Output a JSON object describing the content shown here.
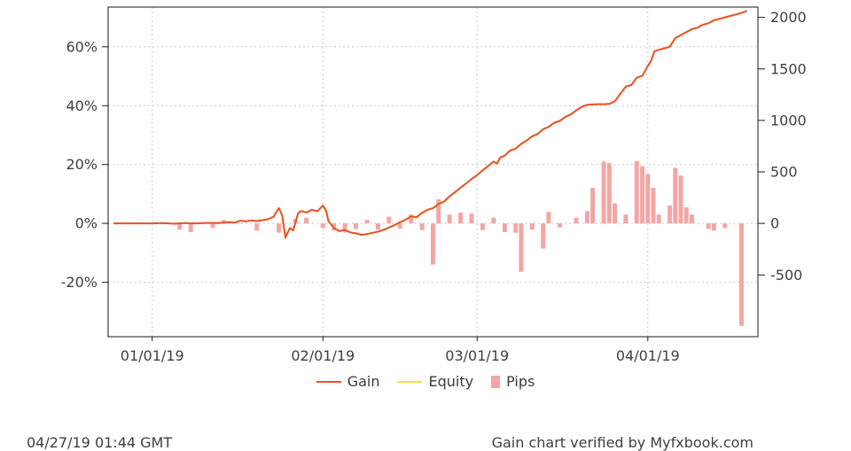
{
  "chart_data": {
    "type": "line",
    "title": "",
    "x_axis": {
      "tick_labels": [
        "01/01/19",
        "02/01/19",
        "03/01/19",
        "04/01/19"
      ],
      "tick_days": [
        0,
        31,
        59,
        90
      ],
      "domain_days": [
        -8,
        110
      ]
    },
    "left_axis": {
      "unit": "%",
      "tick_labels": [
        "60%",
        "40%",
        "20%",
        "0%",
        "-20%"
      ],
      "tick_values": [
        60,
        40,
        20,
        0,
        -20
      ],
      "range": [
        -38.5,
        73.5
      ]
    },
    "right_axis": {
      "unit": "pips",
      "tick_labels": [
        "2000",
        "1500",
        "1000",
        "500",
        "0",
        "-500"
      ],
      "tick_values": [
        2000,
        1500,
        1000,
        500,
        0,
        -500
      ],
      "range": [
        -1100,
        2100
      ]
    },
    "grid": true,
    "legend_position": "bottom",
    "series": [
      {
        "name": "Gain",
        "type": "line",
        "color": "#e8522b",
        "axis": "left",
        "points": [
          [
            -7,
            0
          ],
          [
            0,
            0
          ],
          [
            2,
            0.1
          ],
          [
            4,
            -0.1
          ],
          [
            6,
            0.1
          ],
          [
            8,
            0
          ],
          [
            10,
            0.2
          ],
          [
            12,
            0.1
          ],
          [
            14,
            0.4
          ],
          [
            15,
            0.3
          ],
          [
            16,
            0.9
          ],
          [
            17,
            0.7
          ],
          [
            18,
            1
          ],
          [
            19,
            0.8
          ],
          [
            20,
            1.1
          ],
          [
            21,
            1.4
          ],
          [
            22,
            2.2
          ],
          [
            23,
            5.2
          ],
          [
            23.6,
            2.8
          ],
          [
            24.2,
            -4.8
          ],
          [
            25,
            -1.6
          ],
          [
            25.6,
            -2.4
          ],
          [
            26.5,
            3.4
          ],
          [
            27,
            4.2
          ],
          [
            28,
            3.7
          ],
          [
            29,
            4.6
          ],
          [
            30,
            4.1
          ],
          [
            31,
            6.1
          ],
          [
            31.6,
            4.2
          ],
          [
            32,
            0.8
          ],
          [
            33,
            -1.6
          ],
          [
            34,
            -2.6
          ],
          [
            35,
            -2.2
          ],
          [
            36,
            -3.1
          ],
          [
            37,
            -3.4
          ],
          [
            38,
            -3.9
          ],
          [
            39,
            -3.6
          ],
          [
            40,
            -3.2
          ],
          [
            41,
            -2.8
          ],
          [
            42,
            -2.2
          ],
          [
            43,
            -1.4
          ],
          [
            44,
            -0.6
          ],
          [
            45,
            0.4
          ],
          [
            46,
            1.2
          ],
          [
            47,
            2.4
          ],
          [
            48,
            2.1
          ],
          [
            49,
            3.6
          ],
          [
            50,
            4.6
          ],
          [
            51,
            5.2
          ],
          [
            52,
            6.6
          ],
          [
            53,
            7.4
          ],
          [
            54,
            9.2
          ],
          [
            55,
            10.6
          ],
          [
            56,
            12.1
          ],
          [
            57,
            13.6
          ],
          [
            58,
            15.1
          ],
          [
            59,
            16.4
          ],
          [
            60,
            18
          ],
          [
            61,
            19.5
          ],
          [
            62,
            21
          ],
          [
            62.6,
            20.3
          ],
          [
            63.2,
            22.4
          ],
          [
            64,
            23
          ],
          [
            65,
            24.8
          ],
          [
            66,
            25.4
          ],
          [
            67,
            27
          ],
          [
            68,
            28.2
          ],
          [
            69,
            29.6
          ],
          [
            70,
            30.4
          ],
          [
            71,
            32
          ],
          [
            72,
            32.8
          ],
          [
            73,
            34.2
          ],
          [
            74,
            34.8
          ],
          [
            75,
            36.2
          ],
          [
            76,
            37
          ],
          [
            77,
            38.4
          ],
          [
            78,
            39.6
          ],
          [
            79,
            40.3
          ],
          [
            80,
            40.4
          ],
          [
            81,
            40.5
          ],
          [
            82,
            40.5
          ],
          [
            83,
            40.6
          ],
          [
            84,
            41.5
          ],
          [
            85,
            44
          ],
          [
            86,
            46.5
          ],
          [
            87,
            47
          ],
          [
            88,
            49.5
          ],
          [
            89,
            50.1
          ],
          [
            90,
            53.5
          ],
          [
            90.6,
            55.2
          ],
          [
            91.2,
            58.5
          ],
          [
            92,
            59
          ],
          [
            93,
            59.5
          ],
          [
            94,
            60
          ],
          [
            95,
            63
          ],
          [
            96,
            64
          ],
          [
            97,
            65
          ],
          [
            98,
            66
          ],
          [
            99,
            66.5
          ],
          [
            100,
            67.5
          ],
          [
            101,
            68
          ],
          [
            102,
            69
          ],
          [
            103,
            69.5
          ],
          [
            104,
            70
          ],
          [
            105,
            70.5
          ],
          [
            106,
            71
          ],
          [
            107,
            71.5
          ],
          [
            108,
            72.2
          ]
        ]
      },
      {
        "name": "Equity",
        "type": "line",
        "color": "#f7e13c",
        "axis": "left",
        "points_same_as": "Gain"
      },
      {
        "name": "Pips",
        "type": "bar",
        "color": "#f3a6a4",
        "axis": "right",
        "points": [
          [
            5,
            -60
          ],
          [
            7,
            -85
          ],
          [
            11,
            -45
          ],
          [
            13,
            35
          ],
          [
            19,
            -70
          ],
          [
            23,
            -90
          ],
          [
            26,
            45
          ],
          [
            28,
            55
          ],
          [
            31,
            -45
          ],
          [
            33,
            -70
          ],
          [
            35,
            -90
          ],
          [
            37,
            -55
          ],
          [
            39,
            35
          ],
          [
            41,
            -60
          ],
          [
            43,
            65
          ],
          [
            45,
            -50
          ],
          [
            47,
            85
          ],
          [
            49,
            -65
          ],
          [
            51,
            -400
          ],
          [
            52,
            235
          ],
          [
            54,
            85
          ],
          [
            56,
            105
          ],
          [
            58,
            95
          ],
          [
            60,
            -65
          ],
          [
            62,
            55
          ],
          [
            64,
            -85
          ],
          [
            66,
            -90
          ],
          [
            67,
            -470
          ],
          [
            69,
            -60
          ],
          [
            71,
            -245
          ],
          [
            72,
            110
          ],
          [
            74,
            -40
          ],
          [
            77,
            55
          ],
          [
            79,
            120
          ],
          [
            80,
            345
          ],
          [
            82,
            600
          ],
          [
            83,
            585
          ],
          [
            84,
            195
          ],
          [
            86,
            85
          ],
          [
            88,
            605
          ],
          [
            89,
            555
          ],
          [
            90,
            480
          ],
          [
            91,
            345
          ],
          [
            92,
            85
          ],
          [
            94,
            175
          ],
          [
            95,
            540
          ],
          [
            96,
            465
          ],
          [
            97,
            155
          ],
          [
            98,
            85
          ],
          [
            101,
            -55
          ],
          [
            102,
            -70
          ],
          [
            104,
            -45
          ],
          [
            107,
            -995
          ]
        ]
      }
    ]
  },
  "footer": {
    "timestamp": "04/27/19 01:44 GMT",
    "verified": "Gain chart verified by Myfxbook.com"
  }
}
